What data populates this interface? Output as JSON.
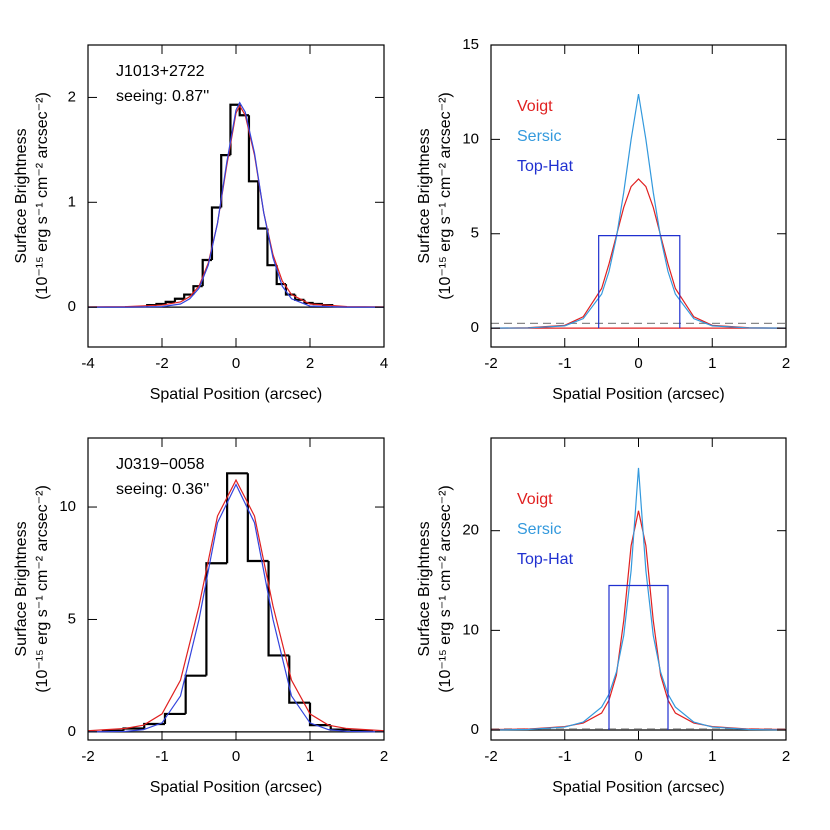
{
  "chart_data": [
    {
      "type": "line",
      "xlabel": "Spatial Position (arcsec)",
      "ylabel": [
        "Surface Brightness",
        "(10⁻¹⁵ erg s⁻¹ cm⁻² arcsec⁻²)"
      ],
      "annotations": [
        "J1013+2722",
        "seeing: 0.87''"
      ],
      "xlim": [
        -4,
        4
      ],
      "xticks": [
        -4,
        -2,
        0,
        2,
        4
      ],
      "ylim": [
        -0.38,
        2.5
      ],
      "yticks": [
        0,
        1,
        2
      ],
      "reference_lines": [
        {
          "value": 0,
          "color": "#000000",
          "dashed": false
        }
      ],
      "histogram": {
        "color": "#000000",
        "bins": [
          -2.4,
          -2.15,
          -1.9,
          -1.65,
          -1.4,
          -1.15,
          -0.9,
          -0.65,
          -0.4,
          -0.15,
          0.1,
          0.35,
          0.6,
          0.85,
          1.1,
          1.35,
          1.6,
          1.85,
          2.1,
          2.35,
          2.6
        ],
        "counts": [
          0.02,
          0.03,
          0.05,
          0.08,
          0.12,
          0.2,
          0.45,
          0.95,
          1.45,
          1.93,
          1.83,
          1.2,
          0.75,
          0.4,
          0.22,
          0.12,
          0.07,
          0.04,
          0.03,
          0.02
        ]
      },
      "series": [
        {
          "color": "#e02020",
          "x": [
            -4,
            -3,
            -2,
            -1.5,
            -1.25,
            -1,
            -0.75,
            -0.5,
            -0.25,
            0,
            0.1,
            0.25,
            0.5,
            0.75,
            1,
            1.25,
            1.5,
            2,
            3,
            4
          ],
          "values": [
            0.003,
            0.005,
            0.02,
            0.05,
            0.1,
            0.2,
            0.42,
            0.8,
            1.35,
            1.85,
            1.92,
            1.83,
            1.45,
            0.9,
            0.5,
            0.25,
            0.12,
            0.03,
            0.005,
            0.003
          ]
        },
        {
          "color": "#3344dd",
          "x": [
            -4,
            -3,
            -2,
            -1.5,
            -1.25,
            -1,
            -0.75,
            -0.5,
            -0.25,
            0,
            0.1,
            0.25,
            0.5,
            0.75,
            1,
            1.25,
            1.5,
            2,
            3,
            4
          ],
          "values": [
            0,
            0,
            0.005,
            0.03,
            0.08,
            0.18,
            0.4,
            0.8,
            1.38,
            1.88,
            1.95,
            1.86,
            1.47,
            0.9,
            0.47,
            0.2,
            0.08,
            0.01,
            0,
            0
          ]
        }
      ]
    },
    {
      "type": "line",
      "xlabel": "Spatial Position (arcsec)",
      "ylabel": [
        "Surface Brightness",
        "(10⁻¹⁵ erg s⁻¹ cm⁻² arcsec⁻²)"
      ],
      "legend": "upper left",
      "xlim": [
        -2,
        2
      ],
      "xticks": [
        -2,
        -1,
        0,
        1,
        2
      ],
      "ylim": [
        -1,
        15
      ],
      "yticks": [
        0,
        5,
        10,
        15
      ],
      "reference_lines": [
        {
          "value": 0,
          "color": "#e02020",
          "dashed": false
        },
        {
          "value": 0.25,
          "color": "#888888",
          "dashed": true
        }
      ],
      "series": [
        {
          "name": "Voigt",
          "color": "#e02020",
          "x": [
            -2,
            -1.5,
            -1,
            -0.75,
            -0.5,
            -0.4,
            -0.3,
            -0.2,
            -0.1,
            0,
            0.1,
            0.2,
            0.3,
            0.4,
            0.5,
            0.75,
            1,
            1.5,
            2
          ],
          "values": [
            0,
            0.02,
            0.15,
            0.6,
            2.1,
            3.4,
            4.9,
            6.4,
            7.5,
            7.9,
            7.5,
            6.4,
            4.9,
            3.4,
            2.1,
            0.6,
            0.15,
            0.02,
            0
          ]
        },
        {
          "name": "Sersic",
          "color": "#3399dd",
          "x": [
            -2,
            -1.5,
            -1,
            -0.75,
            -0.5,
            -0.4,
            -0.3,
            -0.2,
            -0.1,
            0,
            0.1,
            0.2,
            0.3,
            0.4,
            0.5,
            0.75,
            1,
            1.5,
            2
          ],
          "values": [
            0,
            0.01,
            0.12,
            0.5,
            1.8,
            3.0,
            4.8,
            7.2,
            10,
            12.4,
            10,
            7.2,
            4.8,
            3.0,
            1.8,
            0.5,
            0.12,
            0.01,
            0
          ]
        },
        {
          "name": "Top-Hat",
          "color": "#2030d0",
          "x": [
            -0.54,
            -0.54,
            0.56,
            0.56
          ],
          "values": [
            0,
            4.9,
            4.9,
            0
          ]
        }
      ]
    },
    {
      "type": "line",
      "xlabel": "Spatial Position (arcsec)",
      "ylabel": [
        "Surface Brightness",
        "(10⁻¹⁵ erg s⁻¹ cm⁻² arcsec⁻²)"
      ],
      "annotations": [
        "J0319−0058",
        "seeing: 0.36''"
      ],
      "xlim": [
        -2,
        2
      ],
      "xticks": [
        -2,
        -1,
        0,
        1,
        2
      ],
      "ylim": [
        -0.36,
        13.07
      ],
      "yticks": [
        0,
        5,
        10
      ],
      "reference_lines": [
        {
          "value": 0,
          "color": "#000000",
          "dashed": false
        }
      ],
      "histogram": {
        "color": "#000000",
        "bins": [
          -1.8,
          -1.52,
          -1.24,
          -0.96,
          -0.68,
          -0.4,
          -0.12,
          0.16,
          0.44,
          0.72,
          1.0,
          1.28,
          1.56,
          1.84
        ],
        "counts": [
          0.05,
          0.15,
          0.35,
          0.8,
          2.5,
          7.5,
          11.5,
          7.6,
          3.4,
          1.3,
          0.3,
          0.1,
          0.05
        ]
      },
      "series": [
        {
          "color": "#e02020",
          "x": [
            -2,
            -1.5,
            -1.25,
            -1,
            -0.75,
            -0.5,
            -0.25,
            0,
            0.25,
            0.5,
            0.75,
            1,
            1.25,
            1.5,
            2
          ],
          "values": [
            0.05,
            0.15,
            0.3,
            0.8,
            2.3,
            5.6,
            9.6,
            11.2,
            9.6,
            5.6,
            2.3,
            0.8,
            0.3,
            0.15,
            0.05
          ]
        },
        {
          "color": "#3344dd",
          "x": [
            -2,
            -1.5,
            -1.25,
            -1,
            -0.75,
            -0.5,
            -0.25,
            0,
            0.25,
            0.5,
            0.75,
            1,
            1.25,
            1.5,
            2
          ],
          "values": [
            0,
            0.02,
            0.1,
            0.4,
            1.6,
            5.0,
            9.3,
            11.0,
            9.3,
            5.0,
            1.6,
            0.4,
            0.1,
            0.02,
            0
          ]
        }
      ]
    },
    {
      "type": "line",
      "xlabel": "Spatial Position (arcsec)",
      "ylabel": [
        "Surface Brightness",
        "(10⁻¹⁵ erg s⁻¹ cm⁻² arcsec⁻²)"
      ],
      "legend": "upper left",
      "xlim": [
        -2,
        2
      ],
      "xticks": [
        -2,
        -1,
        0,
        1,
        2
      ],
      "ylim": [
        -1,
        29.3
      ],
      "yticks": [
        0,
        10,
        20
      ],
      "reference_lines": [
        {
          "value": 0,
          "color": "#000000",
          "dashed": false
        },
        {
          "value": 0.1,
          "color": "#888888",
          "dashed": true
        }
      ],
      "series": [
        {
          "name": "Voigt",
          "color": "#e02020",
          "x": [
            -2,
            -1.5,
            -1,
            -0.75,
            -0.5,
            -0.4,
            -0.3,
            -0.2,
            -0.1,
            0,
            0.1,
            0.2,
            0.3,
            0.4,
            0.5,
            0.75,
            1,
            1.5,
            2
          ],
          "values": [
            0.05,
            0.1,
            0.35,
            0.7,
            1.7,
            3,
            5.5,
            11,
            18.5,
            22,
            18.5,
            11,
            5.5,
            3,
            1.7,
            0.7,
            0.35,
            0.1,
            0.05
          ]
        },
        {
          "name": "Sersic",
          "color": "#3399dd",
          "x": [
            -2,
            -1.5,
            -1,
            -0.75,
            -0.5,
            -0.4,
            -0.3,
            -0.2,
            -0.1,
            0,
            0.1,
            0.2,
            0.3,
            0.4,
            0.5,
            0.75,
            1,
            1.5,
            2
          ],
          "values": [
            0.01,
            0.05,
            0.3,
            0.8,
            2.3,
            3.6,
            5.8,
            9.5,
            16,
            26.3,
            16,
            9.5,
            5.8,
            3.6,
            2.3,
            0.8,
            0.3,
            0.05,
            0.01
          ]
        },
        {
          "name": "Top-Hat",
          "color": "#2030d0",
          "x": [
            -0.4,
            -0.4,
            0.4,
            0.4
          ],
          "values": [
            0,
            14.5,
            14.5,
            0
          ]
        }
      ]
    }
  ]
}
